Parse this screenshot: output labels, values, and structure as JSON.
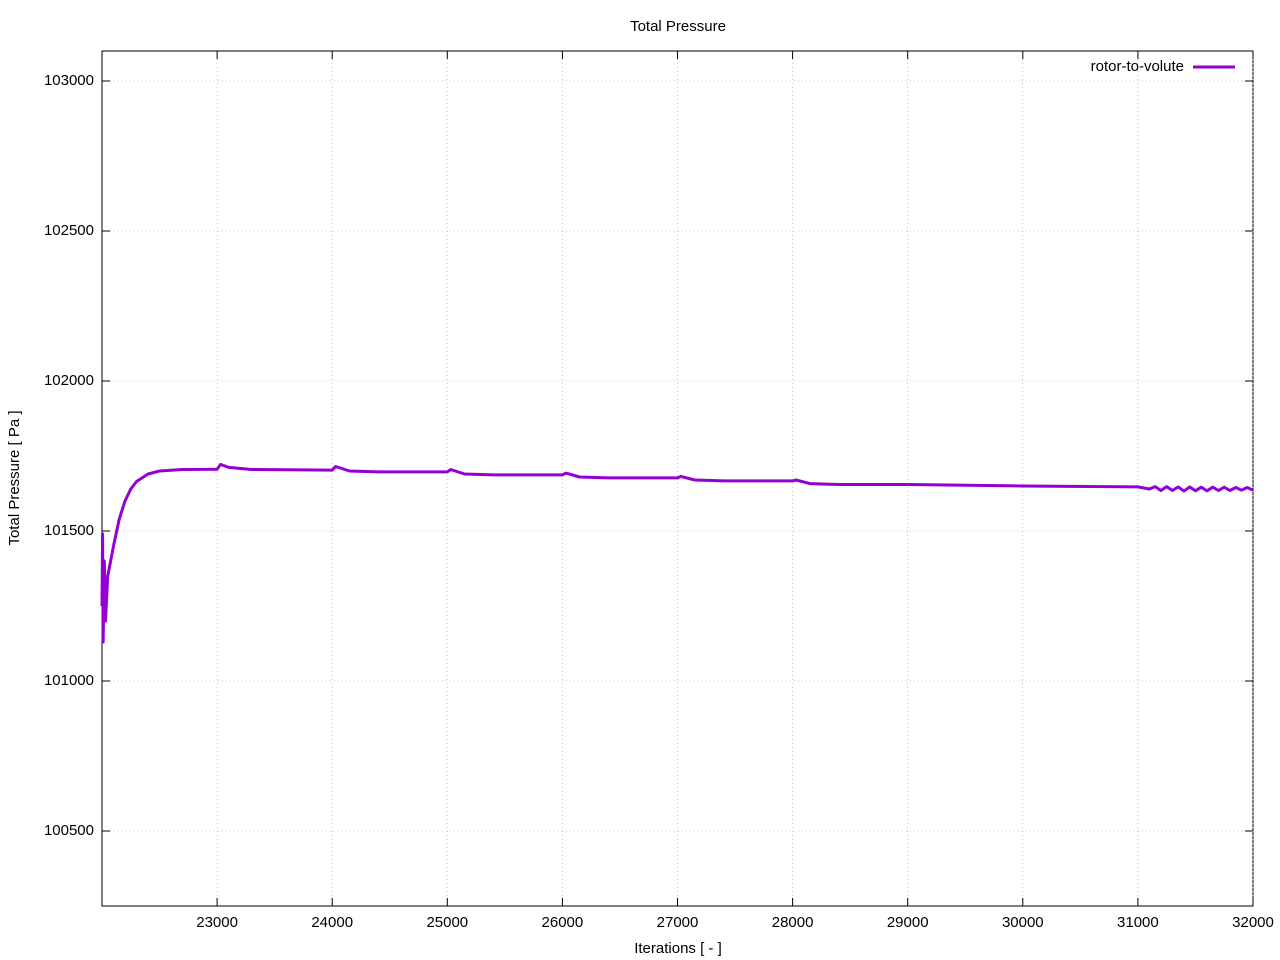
{
  "chart_data": {
    "type": "line",
    "title": "Total Pressure",
    "x_label": "Iterations [ - ]",
    "y_label": "Total Pressure [ Pa ]",
    "xlim": [
      22000,
      32000
    ],
    "xticks": [
      23000,
      24000,
      25000,
      26000,
      27000,
      28000,
      29000,
      30000,
      31000,
      32000
    ],
    "ylim": [
      100250,
      103100
    ],
    "yticks": [
      100500,
      101000,
      101500,
      102000,
      102500,
      103000
    ],
    "grid": true,
    "legend": "top-right",
    "x": [
      22000,
      22005,
      22010,
      22020,
      22030,
      22050,
      22100,
      22150,
      22200,
      22250,
      22300,
      22400,
      22500,
      22700,
      23000,
      23030,
      23100,
      23300,
      24000,
      24030,
      24150,
      24400,
      25000,
      25030,
      25150,
      25400,
      26000,
      26030,
      26150,
      26400,
      27000,
      27030,
      27150,
      27400,
      28000,
      28030,
      28150,
      28400,
      29000,
      30000,
      31000,
      31100,
      31150,
      31200,
      31250,
      31300,
      31350,
      31400,
      31450,
      31500,
      31550,
      31600,
      31650,
      31700,
      31750,
      31800,
      31850,
      31900,
      31950,
      32000
    ],
    "series": [
      {
        "name": "rotor-to-volute",
        "color": "#9400d3",
        "values": [
          101250,
          101490,
          101130,
          101400,
          101200,
          101350,
          101450,
          101540,
          101600,
          101640,
          101665,
          101690,
          101700,
          101705,
          101706,
          101722,
          101712,
          101705,
          101703,
          101715,
          101700,
          101697,
          101697,
          101705,
          101690,
          101687,
          101687,
          101693,
          101680,
          101677,
          101677,
          101682,
          101670,
          101667,
          101667,
          101670,
          101658,
          101655,
          101655,
          101650,
          101647,
          101640,
          101648,
          101635,
          101648,
          101635,
          101647,
          101633,
          101647,
          101634,
          101646,
          101634,
          101646,
          101635,
          101646,
          101635,
          101645,
          101636,
          101645,
          101636
        ]
      }
    ]
  }
}
